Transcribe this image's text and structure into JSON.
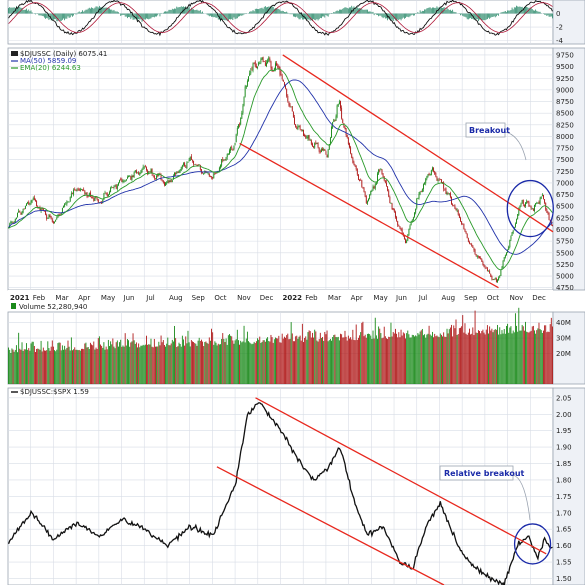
{
  "chart_data": [
    {
      "type": "line",
      "panel": "oscillator",
      "ylim": [
        -4.5,
        2.0
      ],
      "y_ticks": [
        0,
        -2,
        -4
      ],
      "grid": true
    },
    {
      "type": "candlestick",
      "panel": "price",
      "legend": {
        "title": "$DJUSSC (Daily) 6075.41",
        "ma50": "MA(50) 5859.09",
        "ema20": "EMA(20) 6244.63"
      },
      "ylim": [
        4700,
        9900
      ],
      "y_ticks": [
        "9750",
        "9500",
        "9250",
        "9000",
        "8750",
        "8500",
        "8250",
        "8000",
        "7750",
        "7500",
        "7250",
        "7000",
        "6750",
        "6500",
        "6250",
        "6000",
        "5750",
        "5500",
        "5250",
        "5000",
        "4750"
      ],
      "x_labels": [
        "2021",
        "Feb",
        "Mar",
        "Apr",
        "May",
        "Jun",
        "Jul",
        "Aug",
        "Sep",
        "Oct",
        "Nov",
        "Dec",
        "2022",
        "Feb",
        "Mar",
        "Apr",
        "May",
        "Jun",
        "Jul",
        "Aug",
        "Sep",
        "Oct",
        "Nov",
        "Dec"
      ],
      "key_points": [
        {
          "month": 0.0,
          "value": 6050
        },
        {
          "month": 1.0,
          "value": 6650
        },
        {
          "month": 2.0,
          "value": 6150
        },
        {
          "month": 3.0,
          "value": 6900
        },
        {
          "month": 4.0,
          "value": 6600
        },
        {
          "month": 5.0,
          "value": 7050
        },
        {
          "month": 6.0,
          "value": 7300
        },
        {
          "month": 7.0,
          "value": 7000
        },
        {
          "month": 8.0,
          "value": 7500
        },
        {
          "month": 9.0,
          "value": 7100
        },
        {
          "month": 10.0,
          "value": 7900
        },
        {
          "month": 10.6,
          "value": 9400
        },
        {
          "month": 11.2,
          "value": 9650
        },
        {
          "month": 11.9,
          "value": 9450
        },
        {
          "month": 12.6,
          "value": 8300
        },
        {
          "month": 13.3,
          "value": 7900
        },
        {
          "month": 14.0,
          "value": 7600
        },
        {
          "month": 14.5,
          "value": 8750
        },
        {
          "month": 15.2,
          "value": 7400
        },
        {
          "month": 15.8,
          "value": 6600
        },
        {
          "month": 16.4,
          "value": 7300
        },
        {
          "month": 17.0,
          "value": 6300
        },
        {
          "month": 17.5,
          "value": 5700
        },
        {
          "month": 18.0,
          "value": 6650
        },
        {
          "month": 18.6,
          "value": 7300
        },
        {
          "month": 19.2,
          "value": 6900
        },
        {
          "month": 19.9,
          "value": 6200
        },
        {
          "month": 20.4,
          "value": 5600
        },
        {
          "month": 21.1,
          "value": 5100
        },
        {
          "month": 21.5,
          "value": 4850
        },
        {
          "month": 22.1,
          "value": 5800
        },
        {
          "month": 22.6,
          "value": 6600
        },
        {
          "month": 23.1,
          "value": 6450
        },
        {
          "month": 23.5,
          "value": 6750
        },
        {
          "month": 23.9,
          "value": 6075
        }
      ],
      "channel": {
        "upper": [
          {
            "month": 12.1,
            "value": 9750
          },
          {
            "month": 24.0,
            "value": 5950
          }
        ],
        "lower": [
          {
            "month": 10.2,
            "value": 7850
          },
          {
            "month": 21.6,
            "value": 4750
          }
        ]
      },
      "annotation": {
        "text": "Breakout",
        "circle_center": {
          "month": 23.0,
          "value": 6450
        }
      }
    },
    {
      "type": "bar",
      "panel": "volume",
      "legend": "Volume 52,280,940",
      "y_ticks": [
        "40M",
        "30M",
        "20M"
      ],
      "ylim": [
        0,
        47
      ]
    },
    {
      "type": "line",
      "panel": "ratio",
      "legend": "$DJUSSC:$SPX 1.59",
      "ylim": [
        1.48,
        2.08
      ],
      "y_ticks": [
        "2.05",
        "2.00",
        "1.95",
        "1.90",
        "1.85",
        "1.80",
        "1.75",
        "1.70",
        "1.65",
        "1.60",
        "1.55",
        "1.50"
      ],
      "key_points": [
        {
          "month": 0.0,
          "value": 1.61
        },
        {
          "month": 1.0,
          "value": 1.7
        },
        {
          "month": 2.0,
          "value": 1.62
        },
        {
          "month": 3.0,
          "value": 1.67
        },
        {
          "month": 4.0,
          "value": 1.63
        },
        {
          "month": 5.0,
          "value": 1.68
        },
        {
          "month": 6.0,
          "value": 1.65
        },
        {
          "month": 7.0,
          "value": 1.6
        },
        {
          "month": 8.0,
          "value": 1.66
        },
        {
          "month": 9.0,
          "value": 1.63
        },
        {
          "month": 10.0,
          "value": 1.79
        },
        {
          "month": 10.5,
          "value": 1.99
        },
        {
          "month": 11.0,
          "value": 2.04
        },
        {
          "month": 11.8,
          "value": 1.97
        },
        {
          "month": 12.6,
          "value": 1.88
        },
        {
          "month": 13.4,
          "value": 1.8
        },
        {
          "month": 14.0,
          "value": 1.83
        },
        {
          "month": 14.6,
          "value": 1.9
        },
        {
          "month": 15.2,
          "value": 1.74
        },
        {
          "month": 15.8,
          "value": 1.63
        },
        {
          "month": 16.5,
          "value": 1.66
        },
        {
          "month": 17.2,
          "value": 1.55
        },
        {
          "month": 17.8,
          "value": 1.53
        },
        {
          "month": 18.4,
          "value": 1.66
        },
        {
          "month": 19.0,
          "value": 1.73
        },
        {
          "month": 19.8,
          "value": 1.6
        },
        {
          "month": 20.4,
          "value": 1.54
        },
        {
          "month": 21.2,
          "value": 1.5
        },
        {
          "month": 21.8,
          "value": 1.48
        },
        {
          "month": 22.4,
          "value": 1.6
        },
        {
          "month": 22.9,
          "value": 1.63
        },
        {
          "month": 23.3,
          "value": 1.56
        },
        {
          "month": 23.6,
          "value": 1.62
        },
        {
          "month": 23.9,
          "value": 1.59
        }
      ],
      "channel": {
        "upper": [
          {
            "month": 10.9,
            "value": 2.05
          },
          {
            "month": 23.7,
            "value": 1.575
          }
        ],
        "lower": [
          {
            "month": 9.2,
            "value": 1.84
          },
          {
            "month": 19.2,
            "value": 1.48
          }
        ]
      },
      "annotation": {
        "text": "Relative breakout",
        "circle_center": {
          "month": 23.1,
          "value": 1.605
        }
      }
    }
  ],
  "colors": {
    "up": "#1a8a1a",
    "down": "#b01a1a",
    "channel": "#e8281e",
    "ma50": "#2233aa",
    "ema20": "#2a9a2a",
    "annotation": "#1a2aa8",
    "grid": "#d8dde6",
    "panel_bg": "#ffffff",
    "frame": "#9aa3b0"
  }
}
